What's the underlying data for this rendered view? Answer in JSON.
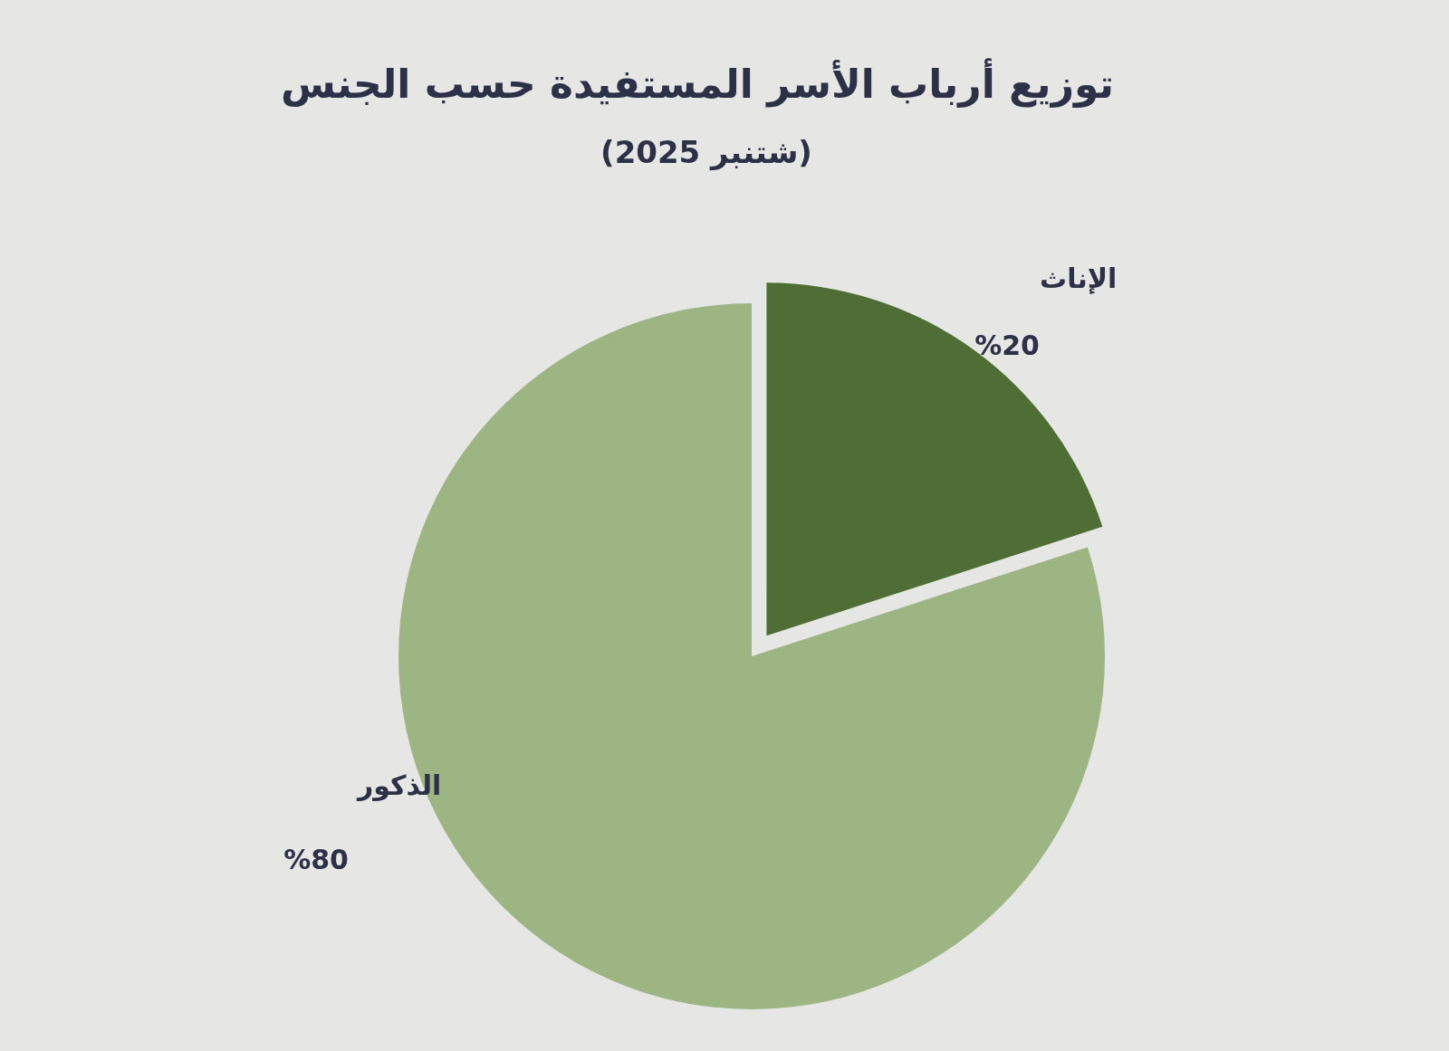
{
  "chart_data": {
    "type": "pie",
    "title": "توزيع أرباب الأسر المستفيدة حسب الجنس",
    "subtitle": "(شتنبر 2025)",
    "categories": [
      "الإناث",
      "الذكور"
    ],
    "values": [
      20,
      80
    ],
    "colors": [
      "#4f6e35",
      "#9db583"
    ],
    "value_labels": [
      "%20",
      "%80"
    ]
  }
}
